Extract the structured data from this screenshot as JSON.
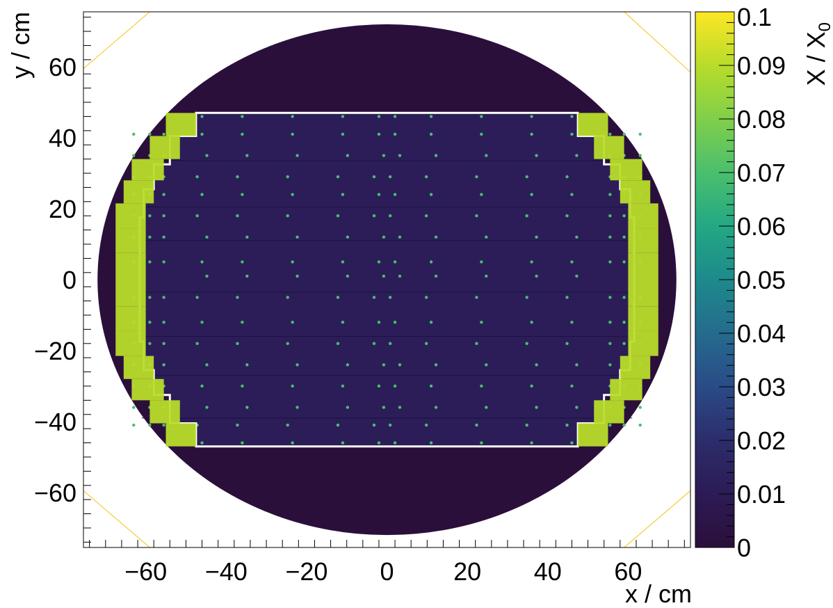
{
  "chart_data": {
    "type": "heatmap",
    "xlabel": "x / cm",
    "ylabel": "y / cm",
    "zlabel_main": "X / X",
    "zlabel_sub": "0",
    "xlim": [
      -75.5,
      75.5
    ],
    "ylim": [
      -75.5,
      75.5
    ],
    "zlim": [
      0,
      0.1
    ],
    "x_ticks": [
      -60,
      -40,
      -20,
      0,
      20,
      40,
      60
    ],
    "x_tick_labels": [
      "−60",
      "−40",
      "−20",
      "0",
      "20",
      "40",
      "60"
    ],
    "y_ticks": [
      -60,
      -40,
      -20,
      0,
      20,
      40,
      60
    ],
    "y_tick_labels": [
      "−60",
      "−40",
      "−20",
      "0",
      "20",
      "40",
      "60"
    ],
    "z_ticks": [
      0,
      0.01,
      0.02,
      0.03,
      0.04,
      0.05,
      0.06,
      0.07,
      0.08,
      0.09,
      0.1
    ],
    "z_tick_labels": [
      "0",
      "0.01",
      "0.02",
      "0.03",
      "0.04",
      "0.05",
      "0.06",
      "0.07",
      "0.08",
      "0.09",
      "0.1"
    ],
    "colormap": [
      "#2b0f3b",
      "#2c1b55",
      "#2c2d6b",
      "#2a4b87",
      "#256b8d",
      "#1d8a8c",
      "#23a883",
      "#4abf6e",
      "#80cf4a",
      "#b8dc2a",
      "#fde725"
    ],
    "regions": [
      {
        "name": "outer disk",
        "radius": 72,
        "value": 0.003
      },
      {
        "name": "central plate",
        "x_range": [
          -62,
          62
        ],
        "y_range": [
          -47,
          47
        ],
        "value": 0.012
      },
      {
        "name": "support dots",
        "value": 0.065
      },
      {
        "name": "edge blocks",
        "value": 0.085
      }
    ],
    "plate_outline": [
      [
        -47.5,
        47
      ],
      [
        47.5,
        47
      ],
      [
        47.5,
        40.5
      ],
      [
        54,
        40.5
      ],
      [
        54,
        32.5
      ],
      [
        58,
        32.5
      ],
      [
        58,
        25.5
      ],
      [
        60.5,
        25.5
      ],
      [
        60.5,
        17.5
      ],
      [
        61.5,
        17.5
      ],
      [
        61.5,
        -17.5
      ],
      [
        60.5,
        -17.5
      ],
      [
        60.5,
        -25.5
      ],
      [
        58,
        -25.5
      ],
      [
        58,
        -32.5
      ],
      [
        54,
        -32.5
      ],
      [
        54,
        -40.5
      ],
      [
        47.5,
        -40.5
      ],
      [
        47.5,
        -47
      ],
      [
        -47.5,
        -47
      ],
      [
        -47.5,
        -40.5
      ],
      [
        -54,
        -40.5
      ],
      [
        -54,
        -32.5
      ],
      [
        -58,
        -32.5
      ],
      [
        -58,
        -25.5
      ],
      [
        -60.5,
        -25.5
      ],
      [
        -60.5,
        -17.5
      ],
      [
        -61.5,
        -17.5
      ],
      [
        -61.5,
        17.5
      ],
      [
        -60.5,
        17.5
      ],
      [
        -60.5,
        25.5
      ],
      [
        -58,
        25.5
      ],
      [
        -58,
        32.5
      ],
      [
        -54,
        32.5
      ],
      [
        -54,
        40.5
      ],
      [
        -47.5,
        40.5
      ]
    ],
    "edge_blocks": [
      [
        -55,
        -47.5,
        40.5,
        47
      ],
      [
        -59,
        -51.5,
        34,
        40.5
      ],
      [
        -63.5,
        -55.5,
        28,
        34
      ],
      [
        -65.5,
        -58,
        21.5,
        28
      ],
      [
        -67.5,
        -60,
        14.5,
        21.5
      ],
      [
        -67.5,
        -60,
        7.5,
        14.5
      ],
      [
        -67.5,
        -60,
        0,
        7.5
      ],
      [
        -67.5,
        -60,
        -7.5,
        0
      ],
      [
        -67.5,
        -60,
        -14.5,
        -7.5
      ],
      [
        -67.5,
        -60,
        -21.5,
        -14.5
      ],
      [
        -65.5,
        -58,
        -28,
        -21.5
      ],
      [
        -63.5,
        -55.5,
        -34,
        -28
      ],
      [
        -59,
        -51.5,
        -40.5,
        -34
      ],
      [
        -55,
        -47.5,
        -47,
        -40.5
      ],
      [
        47.5,
        55,
        40.5,
        47
      ],
      [
        51.5,
        59,
        34,
        40.5
      ],
      [
        55.5,
        63.5,
        28,
        34
      ],
      [
        58,
        65.5,
        21.5,
        28
      ],
      [
        60,
        67.5,
        14.5,
        21.5
      ],
      [
        60,
        67.5,
        7.5,
        14.5
      ],
      [
        60,
        67.5,
        0,
        7.5
      ],
      [
        60,
        67.5,
        -7.5,
        0
      ],
      [
        60,
        67.5,
        -14.5,
        -7.5
      ],
      [
        60,
        67.5,
        -21.5,
        -14.5
      ],
      [
        58,
        65.5,
        -28,
        -21.5
      ],
      [
        55.5,
        63.5,
        -34,
        -28
      ],
      [
        51.5,
        59,
        -40.5,
        -34
      ],
      [
        47.5,
        55,
        -47,
        -40.5
      ]
    ],
    "horizontal_lines_y": [
      33.5,
      20.5,
      11,
      -3.5,
      -16,
      -27,
      -39
    ],
    "dot_columns_x": [
      -46,
      -36,
      -23.5,
      -11,
      -2,
      2,
      11,
      23.5,
      36,
      46
    ],
    "dot_rows_y": [
      41,
      35,
      29,
      24,
      18,
      12,
      5,
      1,
      -5,
      -12,
      -18,
      -24,
      -30,
      -36,
      -41
    ],
    "dot_offsets_x": [
      -3,
      3
    ],
    "dot_extra_rows_y": [
      46,
      -46
    ],
    "dot_extra_columns_x": [
      -63,
      -59,
      -55.5,
      55.5,
      59,
      63
    ],
    "corner_lines": [
      [
        [
          -75.5,
          59.5
        ],
        [
          -59,
          75.5
        ]
      ],
      [
        [
          59,
          75.5
        ],
        [
          75.5,
          58.5
        ]
      ],
      [
        [
          -75.5,
          -59.5
        ],
        [
          -59,
          -75.5
        ]
      ],
      [
        [
          59,
          -75.5
        ],
        [
          75.5,
          -59.5
        ]
      ]
    ],
    "grid": false,
    "legend": "none"
  }
}
